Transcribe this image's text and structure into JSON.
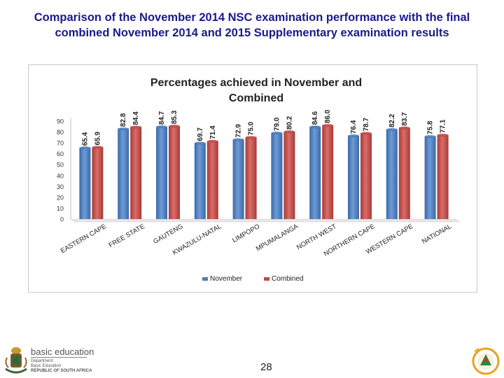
{
  "slide": {
    "title_line1": "Comparison of the November 2014 NSC examination performance with the final",
    "title_line2": "combined November 2014 and 2015 Supplementary examination results",
    "page_number": "28"
  },
  "logo": {
    "line1": "basic education",
    "line2": "Department:",
    "line3": "Basic Education",
    "line4": "REPUBLIC OF SOUTH AFRICA"
  },
  "chart_data": {
    "type": "bar",
    "title_line1": "Percentages achieved in November and",
    "title_line2": "Combined",
    "categories": [
      "EASTERN CAPE",
      "FREE STATE",
      "GAUTENG",
      "KWAZULU-NATAL",
      "LIMPOPO",
      "MPUMALANGA",
      "NORTH WEST",
      "NORTHERN CAPE",
      "WESTERN CAPE",
      "NATIONAL"
    ],
    "series": [
      {
        "name": "November",
        "color": "#4a7ebb",
        "values": [
          65.4,
          82.8,
          84.7,
          69.7,
          72.9,
          79.0,
          84.6,
          76.4,
          82.2,
          75.8
        ]
      },
      {
        "name": "Combined",
        "color": "#be4b48",
        "values": [
          65.9,
          84.4,
          85.3,
          71.4,
          75.0,
          80.2,
          86.0,
          78.7,
          83.7,
          77.1
        ]
      }
    ],
    "value_labels": [
      [
        "65.4",
        "82.8",
        "84.7",
        "69.7",
        "72.9",
        "79.0",
        "84.6",
        "76.4",
        "82.2",
        "75.8"
      ],
      [
        "65.9",
        "84.4",
        "85.3",
        "71.4",
        "75.0",
        "80.2",
        "86.0",
        "78.7",
        "83.7",
        "77.1"
      ]
    ],
    "y_ticks": [
      "0",
      "10",
      "20",
      "30",
      "40",
      "50",
      "60",
      "70",
      "80",
      "90"
    ],
    "ylim": [
      0,
      90
    ],
    "grid": false,
    "legend_position": "bottom"
  }
}
